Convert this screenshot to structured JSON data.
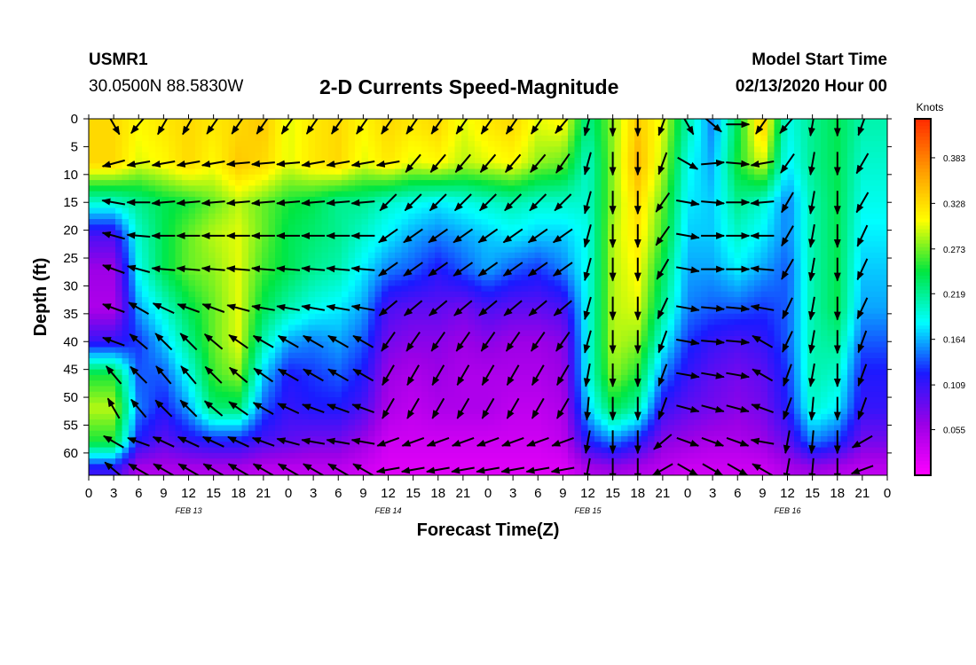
{
  "header": {
    "station": "USMR1",
    "coords": "30.0500N 88.5830W",
    "title": "2-D Currents Speed-Magnitude",
    "model_start_label": "Model Start Time",
    "model_start_value": "02/13/2020 Hour 00"
  },
  "chart_data": {
    "type": "heatmap",
    "title": "2-D Currents Speed-Magnitude",
    "xlabel": "Forecast Time(Z)",
    "ylabel": "Depth (ft)",
    "colorbar_label": "Knots",
    "x_ticks": [
      "0",
      "3",
      "6",
      "9",
      "12",
      "15",
      "18",
      "21",
      "0",
      "3",
      "6",
      "9",
      "12",
      "15",
      "18",
      "21",
      "0",
      "3",
      "6",
      "9",
      "12",
      "15",
      "18",
      "21",
      "0",
      "3",
      "6",
      "9",
      "12",
      "15",
      "18",
      "21",
      "0"
    ],
    "date_labels": [
      {
        "label": "FEB 13",
        "hour": 12
      },
      {
        "label": "FEB 14",
        "hour": 36
      },
      {
        "label": "FEB 15",
        "hour": 60
      },
      {
        "label": "FEB 16",
        "hour": 84
      }
    ],
    "x_range_hours": [
      0,
      96
    ],
    "y_ticks": [
      0,
      5,
      10,
      15,
      20,
      25,
      30,
      35,
      40,
      45,
      50,
      55,
      60
    ],
    "y_range_ft": [
      0,
      64
    ],
    "y_inverted": true,
    "colorbar_ticks": [
      0.055,
      0.109,
      0.164,
      0.219,
      0.273,
      0.328,
      0.383
    ],
    "colorbar_range": [
      0.0,
      0.43
    ],
    "colorbar_ticks_text": [
      "0.055",
      "0.109",
      "0.164",
      "0.219",
      "0.273",
      "0.328",
      "0.383"
    ],
    "colors": {
      "scale": [
        "#ff00ff",
        "#9b00e6",
        "#1a1aff",
        "#00ffff",
        "#00e640",
        "#ffff00",
        "#ff9900",
        "#ff2a00"
      ]
    },
    "arrow_depths_ft": [
      1,
      8,
      15,
      21,
      27,
      34,
      40,
      46,
      52,
      58,
      63
    ],
    "arrow_times_hours": [
      3,
      6,
      9,
      12,
      15,
      18,
      21,
      24,
      27,
      30,
      33,
      36,
      39,
      42,
      45,
      48,
      51,
      54,
      57,
      60,
      63,
      66,
      69,
      72,
      75,
      78,
      81,
      84,
      87,
      90,
      93
    ],
    "speed_knots_at_arrows": [
      [
        0.33,
        0.31,
        0.32,
        0.33,
        0.32,
        0.33,
        0.34,
        0.3,
        0.32,
        0.33,
        0.31,
        0.33,
        0.32,
        0.33,
        0.3,
        0.32,
        0.33,
        0.3,
        0.31,
        0.22,
        0.28,
        0.34,
        0.3,
        0.21,
        0.15,
        0.24,
        0.34,
        0.19,
        0.22,
        0.24,
        0.21
      ],
      [
        0.33,
        0.3,
        0.31,
        0.33,
        0.31,
        0.34,
        0.33,
        0.3,
        0.32,
        0.33,
        0.3,
        0.32,
        0.3,
        0.31,
        0.29,
        0.3,
        0.31,
        0.28,
        0.27,
        0.2,
        0.28,
        0.35,
        0.29,
        0.19,
        0.16,
        0.25,
        0.3,
        0.18,
        0.22,
        0.24,
        0.2
      ],
      [
        0.2,
        0.22,
        0.24,
        0.25,
        0.27,
        0.29,
        0.27,
        0.25,
        0.24,
        0.22,
        0.22,
        0.2,
        0.19,
        0.18,
        0.19,
        0.2,
        0.21,
        0.2,
        0.2,
        0.2,
        0.28,
        0.33,
        0.27,
        0.18,
        0.17,
        0.22,
        0.2,
        0.15,
        0.21,
        0.24,
        0.19
      ],
      [
        0.1,
        0.2,
        0.24,
        0.27,
        0.29,
        0.3,
        0.27,
        0.24,
        0.23,
        0.22,
        0.2,
        0.18,
        0.16,
        0.15,
        0.16,
        0.17,
        0.18,
        0.17,
        0.17,
        0.19,
        0.29,
        0.32,
        0.26,
        0.17,
        0.17,
        0.2,
        0.18,
        0.15,
        0.21,
        0.24,
        0.18
      ],
      [
        0.06,
        0.19,
        0.24,
        0.27,
        0.28,
        0.3,
        0.26,
        0.24,
        0.22,
        0.21,
        0.18,
        0.15,
        0.14,
        0.12,
        0.14,
        0.16,
        0.14,
        0.13,
        0.15,
        0.19,
        0.29,
        0.31,
        0.24,
        0.16,
        0.16,
        0.18,
        0.16,
        0.14,
        0.21,
        0.24,
        0.17
      ],
      [
        0.05,
        0.16,
        0.2,
        0.24,
        0.27,
        0.3,
        0.24,
        0.21,
        0.19,
        0.18,
        0.16,
        0.1,
        0.09,
        0.09,
        0.08,
        0.1,
        0.09,
        0.09,
        0.1,
        0.19,
        0.29,
        0.3,
        0.22,
        0.15,
        0.14,
        0.14,
        0.13,
        0.14,
        0.21,
        0.24,
        0.16
      ],
      [
        0.11,
        0.13,
        0.17,
        0.22,
        0.27,
        0.3,
        0.21,
        0.16,
        0.15,
        0.16,
        0.14,
        0.08,
        0.07,
        0.07,
        0.06,
        0.07,
        0.06,
        0.06,
        0.07,
        0.19,
        0.29,
        0.28,
        0.19,
        0.13,
        0.11,
        0.1,
        0.11,
        0.14,
        0.21,
        0.22,
        0.14
      ],
      [
        0.25,
        0.14,
        0.14,
        0.19,
        0.26,
        0.28,
        0.17,
        0.12,
        0.13,
        0.14,
        0.12,
        0.06,
        0.05,
        0.06,
        0.05,
        0.05,
        0.05,
        0.05,
        0.06,
        0.19,
        0.28,
        0.25,
        0.15,
        0.11,
        0.09,
        0.08,
        0.09,
        0.13,
        0.21,
        0.2,
        0.12
      ],
      [
        0.29,
        0.15,
        0.12,
        0.16,
        0.23,
        0.23,
        0.14,
        0.11,
        0.12,
        0.12,
        0.1,
        0.05,
        0.04,
        0.05,
        0.05,
        0.05,
        0.04,
        0.04,
        0.05,
        0.17,
        0.24,
        0.21,
        0.11,
        0.09,
        0.08,
        0.07,
        0.08,
        0.12,
        0.2,
        0.18,
        0.11
      ],
      [
        0.25,
        0.12,
        0.09,
        0.11,
        0.12,
        0.12,
        0.1,
        0.09,
        0.08,
        0.08,
        0.06,
        0.03,
        0.03,
        0.03,
        0.03,
        0.03,
        0.03,
        0.03,
        0.04,
        0.12,
        0.15,
        0.12,
        0.07,
        0.06,
        0.05,
        0.05,
        0.06,
        0.09,
        0.15,
        0.13,
        0.08
      ],
      [
        0.11,
        0.05,
        0.05,
        0.05,
        0.05,
        0.05,
        0.04,
        0.04,
        0.04,
        0.04,
        0.03,
        0.02,
        0.02,
        0.02,
        0.02,
        0.02,
        0.02,
        0.02,
        0.02,
        0.05,
        0.06,
        0.05,
        0.04,
        0.03,
        0.03,
        0.03,
        0.03,
        0.05,
        0.06,
        0.05,
        0.04
      ]
    ],
    "direction_deg_to_at_arrows": [
      [
        150,
        220,
        210,
        210,
        215,
        215,
        215,
        215,
        215,
        215,
        215,
        215,
        215,
        215,
        215,
        215,
        215,
        215,
        220,
        195,
        180,
        180,
        200,
        150,
        130,
        90,
        215,
        220,
        190,
        180,
        200
      ],
      [
        255,
        260,
        260,
        260,
        260,
        265,
        265,
        265,
        260,
        260,
        260,
        260,
        220,
        220,
        220,
        220,
        220,
        220,
        215,
        195,
        180,
        180,
        200,
        120,
        85,
        95,
        260,
        215,
        190,
        180,
        210
      ],
      [
        280,
        270,
        265,
        265,
        265,
        265,
        265,
        265,
        265,
        265,
        265,
        225,
        225,
        225,
        225,
        225,
        225,
        225,
        225,
        195,
        180,
        180,
        215,
        100,
        95,
        90,
        265,
        210,
        190,
        180,
        210
      ],
      [
        285,
        275,
        270,
        270,
        270,
        270,
        270,
        270,
        270,
        270,
        270,
        235,
        235,
        235,
        235,
        235,
        235,
        235,
        235,
        195,
        180,
        180,
        215,
        100,
        90,
        90,
        270,
        210,
        190,
        180,
        205
      ],
      [
        290,
        285,
        275,
        275,
        275,
        275,
        275,
        275,
        275,
        275,
        275,
        235,
        235,
        235,
        235,
        235,
        235,
        235,
        235,
        195,
        180,
        180,
        210,
        100,
        90,
        90,
        275,
        210,
        190,
        180,
        205
      ],
      [
        290,
        300,
        295,
        290,
        290,
        285,
        280,
        280,
        280,
        280,
        280,
        230,
        230,
        230,
        230,
        230,
        230,
        230,
        230,
        195,
        180,
        180,
        205,
        100,
        95,
        95,
        280,
        205,
        190,
        180,
        205
      ],
      [
        290,
        310,
        315,
        315,
        310,
        305,
        300,
        300,
        300,
        300,
        300,
        215,
        215,
        215,
        215,
        215,
        215,
        215,
        215,
        195,
        180,
        180,
        200,
        100,
        95,
        95,
        300,
        205,
        190,
        180,
        200
      ],
      [
        320,
        315,
        320,
        320,
        315,
        310,
        305,
        300,
        300,
        300,
        300,
        210,
        210,
        210,
        210,
        210,
        210,
        210,
        210,
        190,
        180,
        180,
        200,
        100,
        100,
        100,
        300,
        200,
        190,
        180,
        200
      ],
      [
        330,
        320,
        315,
        315,
        310,
        305,
        300,
        295,
        290,
        290,
        290,
        210,
        210,
        210,
        210,
        210,
        210,
        210,
        210,
        185,
        180,
        180,
        200,
        105,
        105,
        105,
        290,
        200,
        185,
        180,
        200
      ],
      [
        300,
        290,
        295,
        295,
        295,
        295,
        290,
        285,
        280,
        280,
        280,
        250,
        250,
        250,
        250,
        250,
        250,
        250,
        250,
        190,
        180,
        180,
        230,
        110,
        110,
        110,
        280,
        190,
        185,
        180,
        240
      ],
      [
        310,
        300,
        300,
        300,
        300,
        300,
        300,
        300,
        300,
        300,
        300,
        260,
        260,
        260,
        260,
        260,
        260,
        260,
        260,
        190,
        180,
        180,
        240,
        120,
        120,
        120,
        300,
        190,
        185,
        180,
        250
      ]
    ]
  }
}
